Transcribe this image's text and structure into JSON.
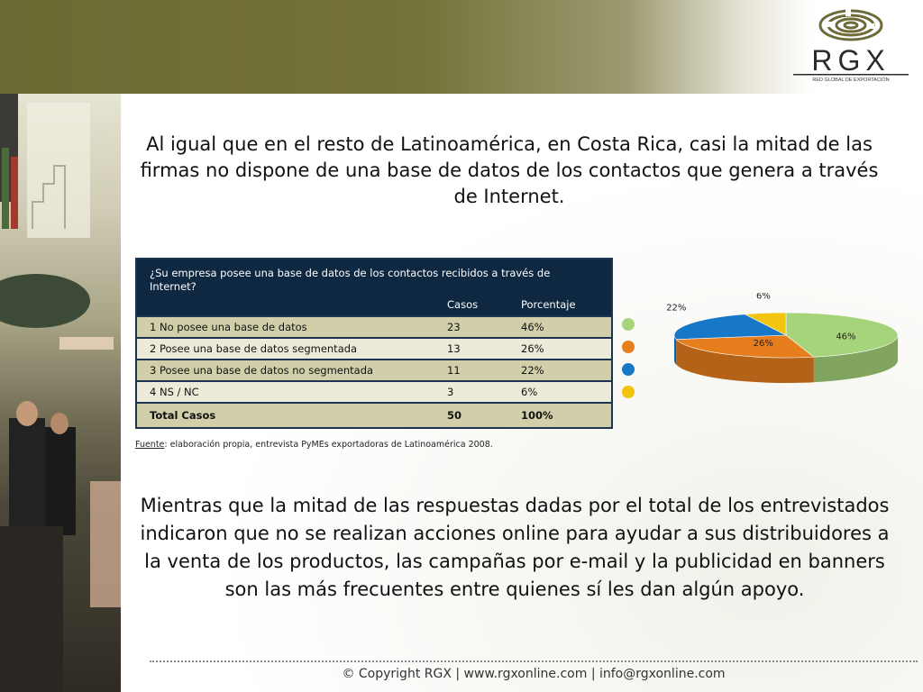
{
  "intro_text": "Al igual que en el resto de Latinoamérica, en Costa Rica, casi la mitad de las firmas no dispone de una base de datos de los contactos que genera a través de Internet.",
  "table": {
    "question": "¿Su empresa posee una base de datos de los contactos recibidos a través de Internet?",
    "col_cases": "Casos",
    "col_percent": "Porcentaje",
    "rows": [
      {
        "label": "1  No posee una base de datos",
        "cases": "23",
        "percent": "46%"
      },
      {
        "label": "2  Posee una base de datos segmentada",
        "cases": "13",
        "percent": "26%"
      },
      {
        "label": "3  Posee una base de datos no segmentada",
        "cases": "11",
        "percent": "22%"
      },
      {
        "label": "4  NS / NC",
        "cases": "3",
        "percent": "6%"
      }
    ],
    "total": {
      "label": "Total Casos",
      "cases": "50",
      "percent": "100%"
    }
  },
  "source": {
    "prefix": "Fuente",
    "text": ": elaboración propia, entrevista PyMEs exportadoras de Latinoamérica 2008."
  },
  "chart_data": {
    "type": "pie",
    "title": "",
    "categories": [
      "No posee una base de datos",
      "Posee una base de datos segmentada",
      "Posee una base de datos no segmentada",
      "NS / NC"
    ],
    "values": [
      46,
      26,
      22,
      6
    ],
    "labels": [
      "46%",
      "26%",
      "22%",
      "6%"
    ],
    "colors": [
      "#a6d47a",
      "#e67e1e",
      "#1878c8",
      "#f2c40f"
    ],
    "style": "3d",
    "legend": "left"
  },
  "conclusion_text": "Mientras que la mitad de las respuestas dadas por el total de los entrevistados indicaron que no se realizan acciones online para ayudar a sus distribuidores a la venta de los productos, las campañas por e-mail y la publicidad en banners son las más frecuentes entre quienes sí les dan algún apoyo.",
  "footer": "© Copyright RGX | www.rgxonline.com | info@rgxonline.com",
  "logo": {
    "name": "RGX",
    "tagline": "RED GLOBAL DE EXPORTACIÓN",
    "icon": "maze-logo-icon"
  },
  "colors": {
    "header_olive": "#6b6a32",
    "table_header": "#0e2842",
    "row_dark": "#d1ceaa",
    "row_light": "#ecebd9"
  }
}
